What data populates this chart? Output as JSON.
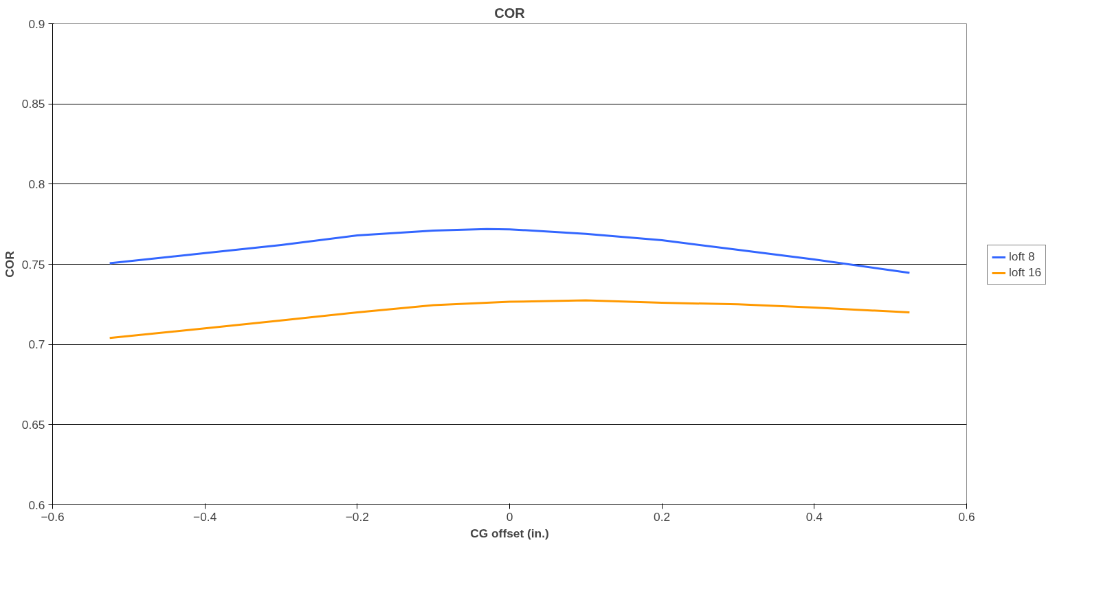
{
  "chart_data": {
    "type": "line",
    "title": "COR",
    "xlabel": "CG offset (in.)",
    "ylabel": "COR",
    "xlim": [
      -0.6,
      0.6
    ],
    "xticks": [
      -0.6,
      -0.4,
      -0.2,
      0,
      0.2,
      0.4,
      0.6
    ],
    "ylim": [
      0.6,
      0.9
    ],
    "yticks": [
      0.6,
      0.65,
      0.7,
      0.75,
      0.8,
      0.85,
      0.9
    ],
    "grid": "y",
    "legend": "right",
    "marker": "none",
    "line_style": "solid",
    "x": [
      -0.525,
      -0.4,
      -0.3,
      -0.2,
      -0.1,
      -0.03,
      0.0,
      0.1,
      0.2,
      0.3,
      0.4,
      0.525
    ],
    "series": [
      {
        "name": "loft 8",
        "color": "#3366ff",
        "values": [
          0.7506,
          0.757,
          0.762,
          0.768,
          0.771,
          0.772,
          0.7718,
          0.769,
          0.765,
          0.759,
          0.753,
          0.7446
        ]
      },
      {
        "name": "loft 16",
        "color": "#ff9900",
        "values": [
          0.704,
          0.71,
          0.715,
          0.72,
          0.7245,
          0.726,
          0.7266,
          0.7275,
          0.726,
          0.725,
          0.723,
          0.72
        ]
      }
    ]
  }
}
